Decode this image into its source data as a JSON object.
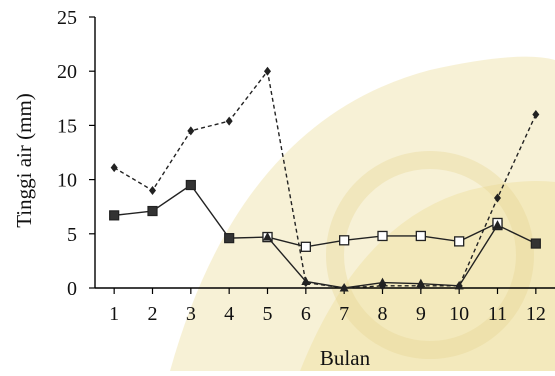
{
  "chart_data": {
    "type": "line",
    "xlabel": "Bulan",
    "ylabel": "Tinggi air (mm)",
    "x": [
      1,
      2,
      3,
      4,
      5,
      6,
      7,
      8,
      9,
      10,
      11,
      12
    ],
    "xlim": [
      0.5,
      12.5
    ],
    "ylim": [
      0,
      25
    ],
    "yticks": [
      0,
      5,
      10,
      15,
      20,
      25
    ],
    "grid": false,
    "legend": "none",
    "series": [
      {
        "marker": "diamond",
        "line": "dashed",
        "color": "#222222",
        "values": [
          11.1,
          9.0,
          14.5,
          15.4,
          20.0,
          0.5,
          0.0,
          0.2,
          0.2,
          0.2,
          8.3,
          16.0
        ]
      },
      {
        "marker": "filled-square",
        "line": "solid",
        "color": "#222222",
        "values": [
          6.7,
          7.1,
          9.5,
          4.6,
          4.7,
          null,
          null,
          null,
          null,
          null,
          5.8,
          4.1
        ]
      },
      {
        "marker": "open-square",
        "line": "solid",
        "color": "#222222",
        "values": [
          null,
          null,
          null,
          null,
          4.7,
          3.8,
          4.4,
          4.8,
          4.8,
          4.3,
          6.0,
          null
        ]
      },
      {
        "marker": "triangle",
        "line": "solid",
        "color": "#222222",
        "values": [
          null,
          null,
          null,
          null,
          4.7,
          0.6,
          0.0,
          0.5,
          0.4,
          0.2,
          5.8,
          null
        ]
      }
    ]
  }
}
